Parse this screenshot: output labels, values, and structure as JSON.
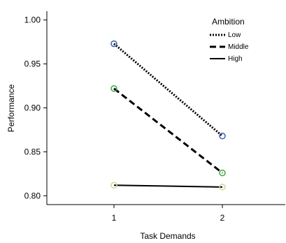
{
  "chart_data": {
    "type": "line",
    "title": "",
    "xlabel": "Task Demands",
    "ylabel": "Performance",
    "x": [
      "1",
      "2"
    ],
    "ylim": [
      0.79,
      1.01
    ],
    "yticks": [
      "0.80",
      "0.85",
      "0.90",
      "0.95",
      "1.00"
    ],
    "grid": false,
    "legend": {
      "title": "Ambition",
      "placement": "top-right"
    },
    "series": [
      {
        "name": "Low",
        "values": [
          0.973,
          0.868
        ],
        "line_style": "dotted",
        "marker_color": "#3a5fb0"
      },
      {
        "name": "Middle",
        "values": [
          0.922,
          0.826
        ],
        "line_style": "dashed",
        "marker_color": "#3aaa3a"
      },
      {
        "name": "High",
        "values": [
          0.812,
          0.81
        ],
        "line_style": "solid",
        "marker_color": "#d6d39a"
      }
    ]
  }
}
